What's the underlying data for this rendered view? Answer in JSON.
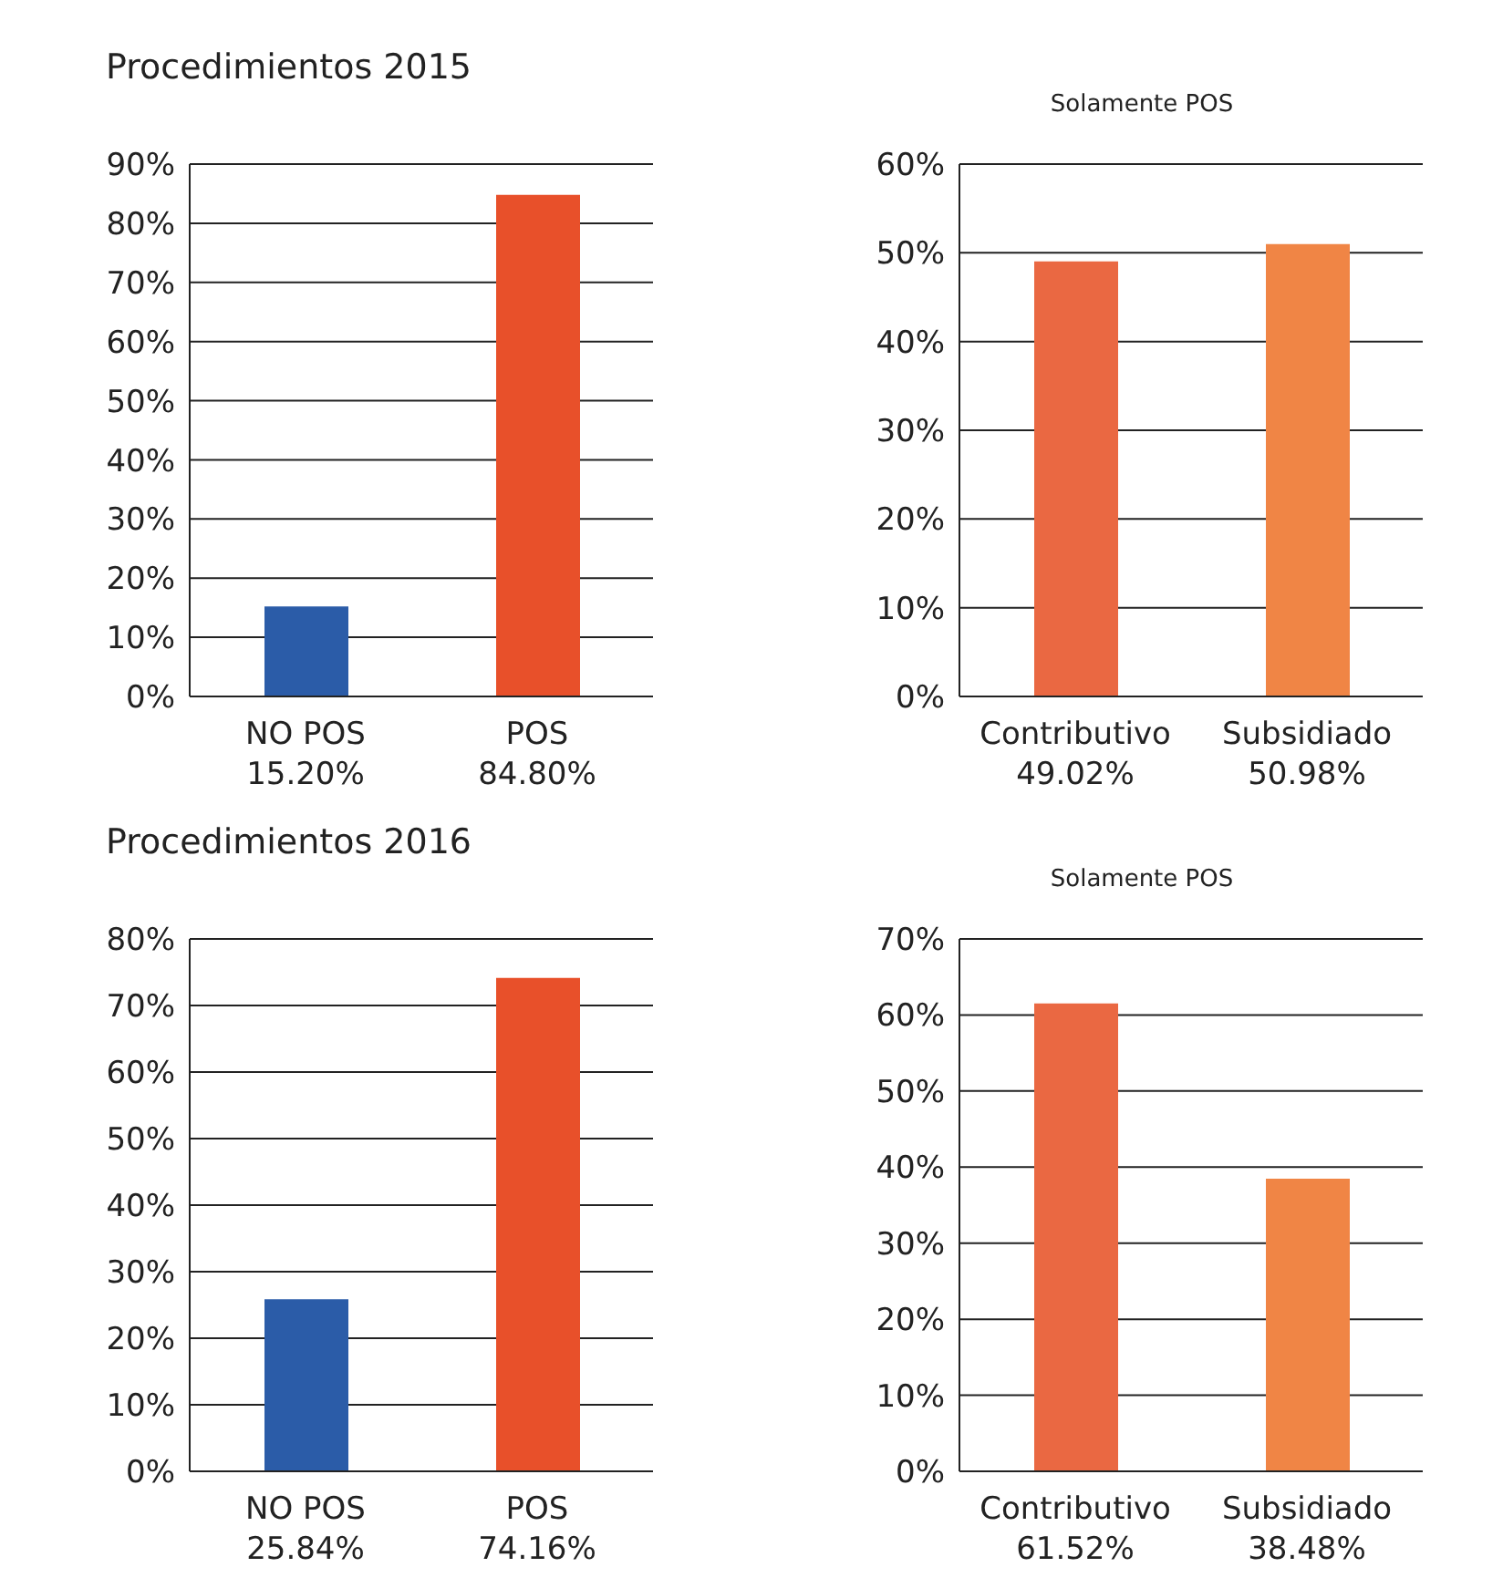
{
  "chart_data": [
    {
      "type": "bar",
      "title": "Procedimientos 2015",
      "categories": [
        "NO POS",
        "POS"
      ],
      "values": [
        15.2,
        84.8
      ],
      "value_labels": [
        "15.20%",
        "84.80%"
      ],
      "colors": [
        "#2b5ca8",
        "#e8502a"
      ],
      "ylim": [
        0,
        90
      ],
      "yticks": [
        {
          "value": 0,
          "label": "0%"
        },
        {
          "value": 10,
          "label": "10%"
        },
        {
          "value": 20,
          "label": "20%"
        },
        {
          "value": 30,
          "label": "30%"
        },
        {
          "value": 40,
          "label": "40%"
        },
        {
          "value": 50,
          "label": "50%"
        },
        {
          "value": 60,
          "label": "60%"
        },
        {
          "value": 70,
          "label": "70%"
        },
        {
          "value": 80,
          "label": "80%"
        },
        {
          "value": 90,
          "label": "90%"
        }
      ],
      "grid": "y"
    },
    {
      "type": "bar",
      "title": "Solamente POS",
      "categories": [
        "Contributivo",
        "Subsidiado"
      ],
      "values": [
        49.02,
        50.98
      ],
      "value_labels": [
        "49.02%",
        "50.98%"
      ],
      "colors": [
        "#ea6842",
        "#f08545"
      ],
      "ylim": [
        0,
        60
      ],
      "yticks": [
        {
          "value": 0,
          "label": "0%"
        },
        {
          "value": 10,
          "label": "10%"
        },
        {
          "value": 20,
          "label": "20%"
        },
        {
          "value": 30,
          "label": "30%"
        },
        {
          "value": 40,
          "label": "40%"
        },
        {
          "value": 50,
          "label": "50%"
        },
        {
          "value": 60,
          "label": "60%"
        }
      ],
      "grid": "y"
    },
    {
      "type": "bar",
      "title": "Procedimientos 2016",
      "categories": [
        "NO POS",
        "POS"
      ],
      "values": [
        25.84,
        74.16
      ],
      "value_labels": [
        "25.84%",
        "74.16%"
      ],
      "colors": [
        "#2b5ca8",
        "#e8502a"
      ],
      "ylim": [
        0,
        80
      ],
      "yticks": [
        {
          "value": 0,
          "label": "0%"
        },
        {
          "value": 10,
          "label": "10%"
        },
        {
          "value": 20,
          "label": "20%"
        },
        {
          "value": 30,
          "label": "30%"
        },
        {
          "value": 40,
          "label": "40%"
        },
        {
          "value": 50,
          "label": "50%"
        },
        {
          "value": 60,
          "label": "60%"
        },
        {
          "value": 70,
          "label": "70%"
        },
        {
          "value": 80,
          "label": "80%"
        }
      ],
      "grid": "y"
    },
    {
      "type": "bar",
      "title": "Solamente POS",
      "categories": [
        "Contributivo",
        "Subsidiado"
      ],
      "values": [
        61.52,
        38.48
      ],
      "value_labels": [
        "61.52%",
        "38.48%"
      ],
      "colors": [
        "#ea6842",
        "#f08545"
      ],
      "ylim": [
        0,
        70
      ],
      "yticks": [
        {
          "value": 0,
          "label": "0%"
        },
        {
          "value": 10,
          "label": "10%"
        },
        {
          "value": 20,
          "label": "20%"
        },
        {
          "value": 30,
          "label": "30%"
        },
        {
          "value": 40,
          "label": "40%"
        },
        {
          "value": 50,
          "label": "50%"
        },
        {
          "value": 60,
          "label": "60%"
        },
        {
          "value": 70,
          "label": "70%"
        }
      ],
      "grid": "y"
    }
  ]
}
